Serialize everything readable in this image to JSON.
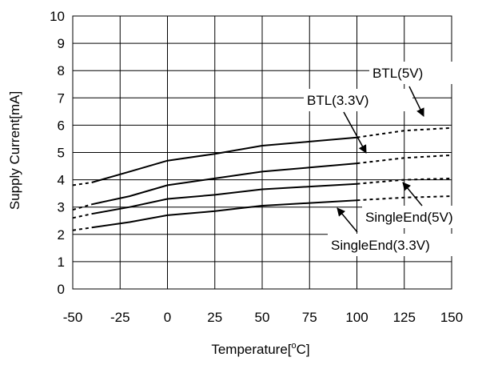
{
  "chart_data": {
    "type": "line",
    "xlabel": "Temperature[",
    "xlabel_sup": "o",
    "xlabel_tail": "C]",
    "ylabel": "Supply Current[mA]",
    "xlim": [
      -50,
      150
    ],
    "ylim": [
      0,
      10
    ],
    "x_ticks": [
      "-50",
      "-25",
      "0",
      "25",
      "50",
      "75",
      "100",
      "125",
      "150"
    ],
    "y_ticks": [
      "0",
      "1",
      "2",
      "3",
      "4",
      "5",
      "6",
      "7",
      "8",
      "9",
      "10"
    ],
    "grid": true,
    "series": [
      {
        "name": "BTL(5V)",
        "solid": [
          [
            -40,
            3.9
          ],
          [
            -20,
            4.3
          ],
          [
            0,
            4.7
          ],
          [
            25,
            4.95
          ],
          [
            50,
            5.25
          ],
          [
            75,
            5.4
          ],
          [
            100,
            5.55
          ]
        ],
        "dashed_left": [
          [
            -50,
            3.8
          ],
          [
            -40,
            3.9
          ]
        ],
        "dashed_right": [
          [
            100,
            5.55
          ],
          [
            125,
            5.8
          ],
          [
            150,
            5.9
          ]
        ]
      },
      {
        "name": "BTL(3.3V)",
        "solid": [
          [
            -40,
            3.1
          ],
          [
            -20,
            3.4
          ],
          [
            0,
            3.8
          ],
          [
            25,
            4.05
          ],
          [
            50,
            4.3
          ],
          [
            75,
            4.45
          ],
          [
            100,
            4.6
          ]
        ],
        "dashed_left": [
          [
            -50,
            2.9
          ],
          [
            -40,
            3.1
          ]
        ],
        "dashed_right": [
          [
            100,
            4.6
          ],
          [
            125,
            4.8
          ],
          [
            150,
            4.9
          ]
        ]
      },
      {
        "name": "SingleEnd(5V)",
        "solid": [
          [
            -40,
            2.75
          ],
          [
            -20,
            3.0
          ],
          [
            0,
            3.3
          ],
          [
            25,
            3.45
          ],
          [
            50,
            3.65
          ],
          [
            75,
            3.75
          ],
          [
            100,
            3.85
          ]
        ],
        "dashed_left": [
          [
            -50,
            2.6
          ],
          [
            -40,
            2.75
          ]
        ],
        "dashed_right": [
          [
            100,
            3.85
          ],
          [
            125,
            4.0
          ],
          [
            150,
            4.05
          ]
        ]
      },
      {
        "name": "SingleEnd(3.3V)",
        "solid": [
          [
            -40,
            2.25
          ],
          [
            -20,
            2.45
          ],
          [
            0,
            2.7
          ],
          [
            25,
            2.85
          ],
          [
            50,
            3.05
          ],
          [
            75,
            3.15
          ],
          [
            100,
            3.25
          ]
        ],
        "dashed_left": [
          [
            -50,
            2.15
          ],
          [
            -40,
            2.25
          ]
        ],
        "dashed_right": [
          [
            100,
            3.25
          ],
          [
            125,
            3.35
          ],
          [
            150,
            3.4
          ]
        ]
      }
    ],
    "annotations": [
      "BTL(5V)",
      "BTL(3.3V)",
      "SingleEnd(5V)",
      "SingleEnd(3.3V)"
    ]
  }
}
